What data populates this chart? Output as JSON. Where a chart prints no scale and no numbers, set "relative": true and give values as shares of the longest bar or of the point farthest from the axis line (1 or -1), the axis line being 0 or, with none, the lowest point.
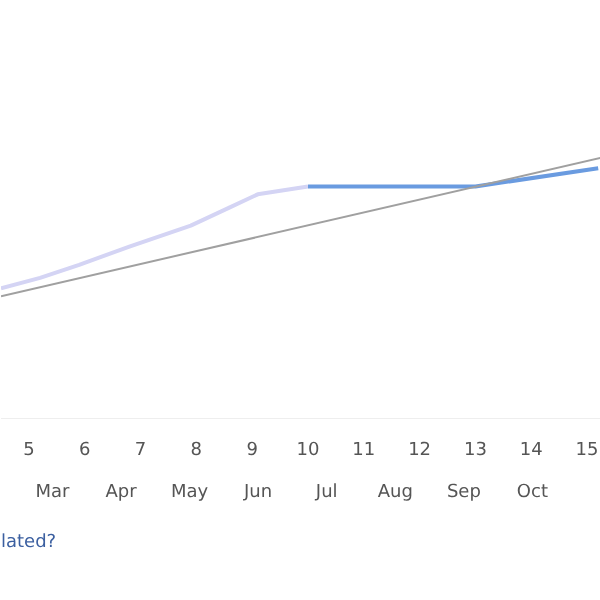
{
  "chart_data": {
    "type": "line",
    "relative": true,
    "xlim": [
      4.5,
      15.25
    ],
    "xticks": [
      5,
      6,
      7,
      8,
      9,
      10,
      11,
      12,
      13,
      14,
      15
    ],
    "series": [
      {
        "color": "#d4d4f4",
        "x": [
          4.5,
          5.2,
          5.9,
          6.8,
          7.9,
          8.6,
          9.1,
          10
        ],
        "values": [
          0.5,
          0.54,
          0.59,
          0.66,
          0.74,
          0.81,
          0.86,
          0.89
        ]
      },
      {
        "color": "#6a9be0",
        "x": [
          10,
          13,
          15.2
        ],
        "values": [
          0.89,
          0.89,
          0.96
        ]
      },
      {
        "color": "#a0a0a0",
        "x": [
          4.5,
          15.25
        ],
        "values": [
          0.47,
          1.0
        ]
      }
    ],
    "annotations": [
      "Mar",
      "Apr",
      "May",
      "Jun",
      "Jul",
      "Aug",
      "Sep",
      "Oct",
      "lated?"
    ]
  }
}
